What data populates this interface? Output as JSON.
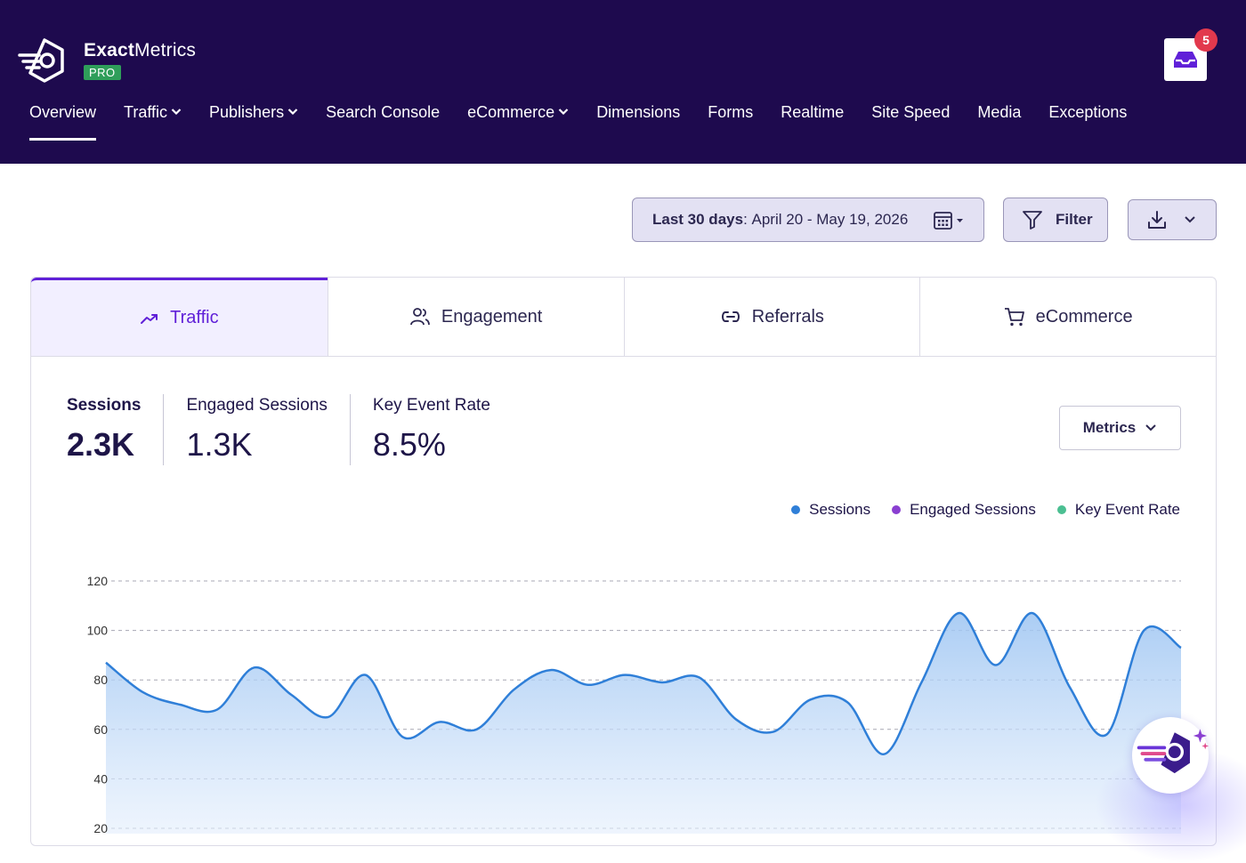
{
  "header": {
    "brand_bold": "Exact",
    "brand_light": "Metrics",
    "badge": "PRO",
    "notifications_count": "5"
  },
  "nav": {
    "items": [
      {
        "label": "Overview",
        "active": true
      },
      {
        "label": "Traffic",
        "dropdown": true
      },
      {
        "label": "Publishers",
        "dropdown": true
      },
      {
        "label": "Search Console"
      },
      {
        "label": "eCommerce",
        "dropdown": true
      },
      {
        "label": "Dimensions"
      },
      {
        "label": "Forms"
      },
      {
        "label": "Realtime"
      },
      {
        "label": "Site Speed"
      },
      {
        "label": "Media"
      },
      {
        "label": "Exceptions"
      }
    ]
  },
  "toolbar": {
    "date_prefix": "Last 30 days",
    "date_range": "April 20 - May 19, 2026",
    "filter_label": "Filter"
  },
  "tabs": [
    {
      "label": "Traffic",
      "icon": "trend-up-icon",
      "active": true
    },
    {
      "label": "Engagement",
      "icon": "users-icon"
    },
    {
      "label": "Referrals",
      "icon": "link-icon"
    },
    {
      "label": "eCommerce",
      "icon": "cart-icon"
    }
  ],
  "stats": [
    {
      "label": "Sessions",
      "value": "2.3K"
    },
    {
      "label": "Engaged Sessions",
      "value": "1.3K"
    },
    {
      "label": "Key Event Rate",
      "value": "8.5%"
    }
  ],
  "metrics_button": "Metrics",
  "legend": [
    {
      "label": "Sessions",
      "color": "#2f7fd8"
    },
    {
      "label": "Engaged Sessions",
      "color": "#8a3fd1"
    },
    {
      "label": "Key Event Rate",
      "color": "#4bbf92"
    }
  ],
  "colors": {
    "header_bg": "#1e0a4e",
    "accent": "#6020d8",
    "line": "#2f7fd8"
  },
  "chart_data": {
    "type": "area",
    "series": [
      {
        "name": "Sessions",
        "values": [
          87,
          75,
          70,
          68,
          85,
          74,
          65,
          82,
          57,
          63,
          60,
          76,
          84,
          78,
          82,
          79,
          81,
          64,
          59,
          72,
          71,
          50,
          79,
          107,
          86,
          107,
          77,
          58,
          100,
          93
        ]
      }
    ],
    "yticks": [
      "120",
      "100",
      "80",
      "60",
      "40",
      "20"
    ],
    "ylim": [
      0,
      120
    ],
    "grid": true
  }
}
